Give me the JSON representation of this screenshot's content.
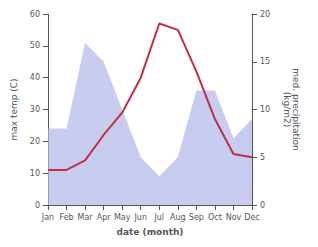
{
  "chart_data": {
    "type": "line",
    "xlabel": "date (month)",
    "ylabel": "max temp (C)",
    "y2label": "med. precipitation\n(kg/m2)",
    "categories": [
      "Jan",
      "Feb",
      "Mar",
      "Apr",
      "May",
      "Jun",
      "Jul",
      "Aug",
      "Sep",
      "Oct",
      "Nov",
      "Dec"
    ],
    "series": [
      {
        "type": "area",
        "axis": "y2",
        "color": "#b0b8e8",
        "values": [
          8,
          8,
          17,
          15,
          10,
          5,
          3,
          5,
          12,
          12,
          7,
          9
        ]
      },
      {
        "type": "line",
        "color": "#c03040",
        "values": [
          11,
          11,
          14,
          22,
          29,
          40,
          57,
          55,
          42,
          27,
          16,
          15
        ]
      }
    ],
    "ylim": [
      0,
      60
    ],
    "yticks": [
      0,
      10,
      20,
      30,
      40,
      50,
      60
    ],
    "y2lim": [
      0,
      20
    ],
    "y2ticks": [
      0,
      5,
      10,
      15,
      20
    ],
    "grid": false
  }
}
